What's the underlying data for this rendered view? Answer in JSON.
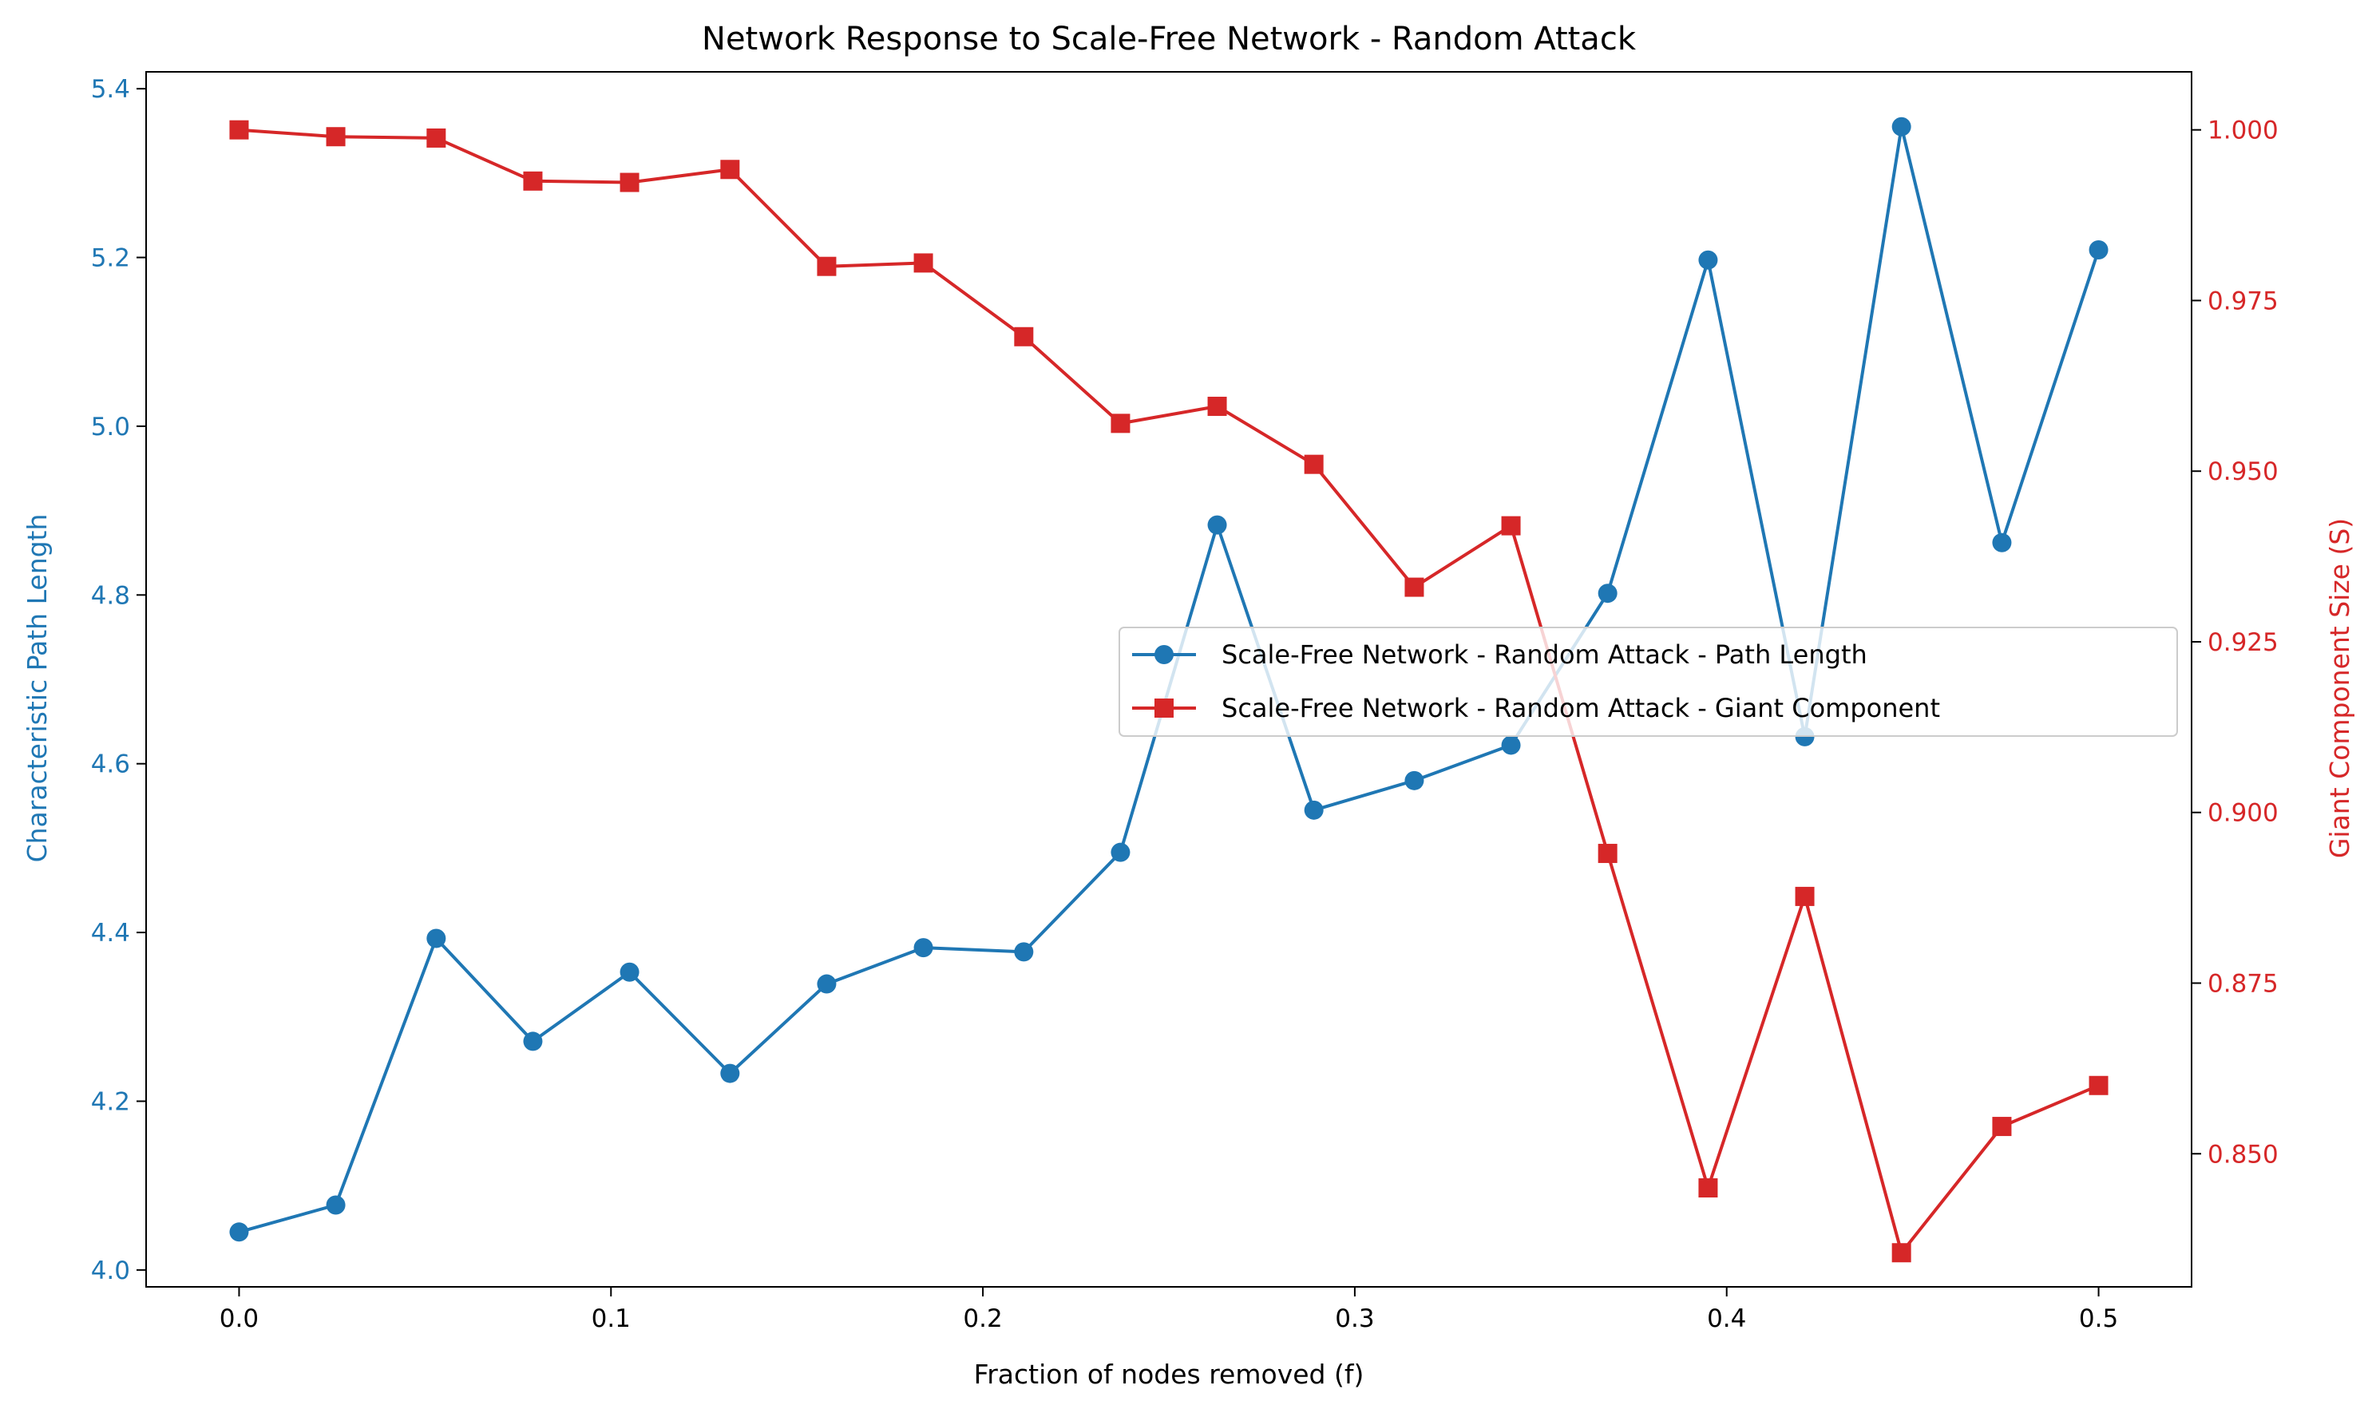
{
  "chart_data": {
    "type": "line",
    "title": "Network Response to Scale-Free Network - Random Attack",
    "xlabel": "Fraction of nodes removed (f)",
    "ylabel_left": "Characteristic Path Length",
    "ylabel_right": "Giant Component Size (S)",
    "xlim": [
      -0.025,
      0.525
    ],
    "ylim_left": [
      3.98,
      5.42
    ],
    "ylim_right": [
      0.8305,
      1.0085
    ],
    "xticks": [
      "0.0",
      "0.1",
      "0.2",
      "0.3",
      "0.4",
      "0.5"
    ],
    "xtick_values": [
      0.0,
      0.1,
      0.2,
      0.3,
      0.4,
      0.5
    ],
    "yticks_left": [
      "4.0",
      "4.2",
      "4.4",
      "4.6",
      "4.8",
      "5.0",
      "5.2",
      "5.4"
    ],
    "ytick_values_left": [
      4.0,
      4.2,
      4.4,
      4.6,
      4.8,
      5.0,
      5.2,
      5.4
    ],
    "yticks_right": [
      "0.850",
      "0.875",
      "0.900",
      "0.925",
      "0.950",
      "0.975",
      "1.000"
    ],
    "ytick_values_right": [
      0.85,
      0.875,
      0.9,
      0.925,
      0.95,
      0.975,
      1.0
    ],
    "legend_position": "center-right",
    "grid": false,
    "x": [
      0.0,
      0.026,
      0.053,
      0.079,
      0.105,
      0.132,
      0.158,
      0.184,
      0.211,
      0.237,
      0.263,
      0.289,
      0.316,
      0.342,
      0.368,
      0.395,
      0.421,
      0.447,
      0.474,
      0.5
    ],
    "series": [
      {
        "name": "Scale-Free Network - Random Attack - Path Length",
        "axis": "left",
        "color": "#1f77b4",
        "marker": "circle",
        "values": [
          4.045,
          4.077,
          4.393,
          4.271,
          4.353,
          4.233,
          4.339,
          4.382,
          4.377,
          4.495,
          4.883,
          4.545,
          4.58,
          4.622,
          4.802,
          5.197,
          4.632,
          5.355,
          4.862,
          5.209
        ]
      },
      {
        "name": "Scale-Free Network - Random Attack - Giant Component",
        "axis": "right",
        "color": "#d62728",
        "marker": "square",
        "values": [
          1.0,
          0.999,
          0.9988,
          0.9925,
          0.9923,
          0.9942,
          0.98,
          0.9805,
          0.9697,
          0.957,
          0.9595,
          0.951,
          0.933,
          0.942,
          0.894,
          0.845,
          0.8877,
          0.8355,
          0.854,
          0.86
        ]
      }
    ]
  }
}
